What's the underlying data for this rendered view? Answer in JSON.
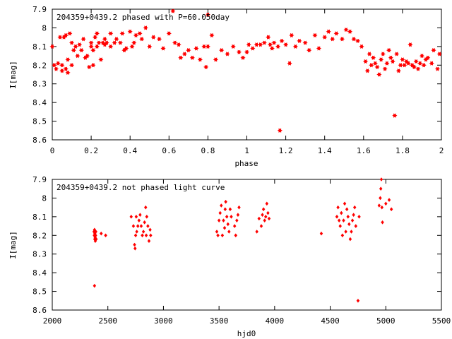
{
  "chart_data": [
    {
      "type": "scatter",
      "title": "204359+0439.2 phased with P=60.050day",
      "xlabel": "phase",
      "ylabel": "I[mag]",
      "xlim": [
        0,
        2
      ],
      "ylim": [
        7.9,
        8.6
      ],
      "y_inverted": true,
      "xticks": [
        "0",
        "0.2",
        "0.4",
        "0.6",
        "0.8",
        "1",
        "1.2",
        "1.4",
        "1.6",
        "1.8",
        "2"
      ],
      "yticks": [
        "7.9",
        "8",
        "8.1",
        "8.2",
        "8.3",
        "8.4",
        "8.5",
        "8.6"
      ],
      "marker": "star",
      "color": "#ff0000",
      "grid": false,
      "legend": "none",
      "x": [
        0.0,
        0.01,
        0.02,
        0.03,
        0.04,
        0.05,
        0.05,
        0.06,
        0.07,
        0.07,
        0.08,
        0.08,
        0.09,
        0.1,
        0.1,
        0.11,
        0.12,
        0.13,
        0.14,
        0.15,
        0.16,
        0.17,
        0.18,
        0.19,
        0.2,
        0.2,
        0.21,
        0.21,
        0.22,
        0.23,
        0.23,
        0.24,
        0.25,
        0.26,
        0.27,
        0.27,
        0.28,
        0.3,
        0.3,
        0.32,
        0.33,
        0.35,
        0.36,
        0.37,
        0.38,
        0.4,
        0.41,
        0.42,
        0.43,
        0.45,
        0.46,
        0.48,
        0.5,
        0.52,
        0.55,
        0.57,
        0.6,
        0.62,
        0.63,
        0.65,
        0.66,
        0.68,
        0.7,
        0.72,
        0.74,
        0.76,
        0.78,
        0.79,
        0.8,
        0.8,
        0.82,
        0.84,
        0.87,
        0.9,
        0.93,
        0.96,
        0.98,
        1.0,
        1.01,
        1.03,
        1.05,
        1.07,
        1.09,
        1.11,
        1.12,
        1.13,
        1.14,
        1.16,
        1.17,
        1.18,
        1.2,
        1.22,
        1.23,
        1.25,
        1.27,
        1.3,
        1.32,
        1.35,
        1.37,
        1.4,
        1.42,
        1.44,
        1.46,
        1.49,
        1.51,
        1.53,
        1.55,
        1.57,
        1.59,
        1.61,
        1.62,
        1.63,
        1.64,
        1.65,
        1.66,
        1.67,
        1.68,
        1.69,
        1.7,
        1.71,
        1.72,
        1.73,
        1.74,
        1.75,
        1.76,
        1.77,
        1.78,
        1.79,
        1.8,
        1.81,
        1.82,
        1.83,
        1.84,
        1.85,
        1.86,
        1.87,
        1.88,
        1.89,
        1.9,
        1.91,
        1.92,
        1.93,
        1.95,
        1.96,
        1.98,
        1.99
      ],
      "y": [
        8.1,
        8.2,
        8.22,
        8.19,
        8.05,
        8.2,
        8.23,
        8.05,
        8.22,
        8.04,
        8.24,
        8.17,
        8.03,
        8.2,
        8.08,
        8.12,
        8.1,
        8.15,
        8.09,
        8.12,
        8.06,
        8.16,
        8.15,
        8.21,
        8.08,
        8.1,
        8.12,
        8.2,
        8.05,
        8.1,
        8.03,
        8.08,
        8.17,
        8.08,
        8.06,
        8.09,
        8.08,
        8.03,
        8.1,
        8.08,
        8.06,
        8.08,
        8.03,
        8.12,
        8.11,
        8.02,
        8.1,
        8.08,
        8.04,
        8.03,
        8.06,
        8.0,
        8.1,
        8.05,
        8.06,
        8.11,
        8.03,
        7.91,
        8.08,
        8.09,
        8.16,
        8.14,
        8.12,
        8.16,
        8.11,
        8.17,
        8.1,
        8.21,
        8.1,
        7.93,
        8.04,
        8.17,
        8.12,
        8.14,
        8.1,
        8.13,
        8.16,
        8.13,
        8.09,
        8.11,
        8.09,
        8.09,
        8.08,
        8.05,
        8.09,
        8.11,
        8.08,
        8.1,
        8.55,
        8.07,
        8.09,
        8.19,
        8.04,
        8.1,
        8.07,
        8.08,
        8.12,
        8.04,
        8.11,
        8.05,
        8.02,
        8.06,
        8.03,
        8.06,
        8.01,
        8.02,
        8.06,
        8.07,
        8.1,
        8.18,
        8.23,
        8.14,
        8.2,
        8.16,
        8.19,
        8.21,
        8.25,
        8.17,
        8.14,
        8.22,
        8.19,
        8.12,
        8.16,
        8.18,
        8.47,
        8.14,
        8.23,
        8.2,
        8.17,
        8.2,
        8.18,
        8.19,
        8.09,
        8.2,
        8.21,
        8.18,
        8.22,
        8.19,
        8.15,
        8.2,
        8.17,
        8.16,
        8.19,
        8.12,
        8.22,
        8.14
      ]
    },
    {
      "type": "scatter",
      "title": "204359+0439.2 not phased light curve",
      "xlabel": "hjd0",
      "ylabel": "I[mag]",
      "xlim": [
        2000,
        5500
      ],
      "ylim": [
        7.9,
        8.6
      ],
      "y_inverted": true,
      "xticks": [
        "2000",
        "2500",
        "3000",
        "3500",
        "4000",
        "4500",
        "5000",
        "5500"
      ],
      "yticks": [
        "7.9",
        "8",
        "8.1",
        "8.2",
        "8.3",
        "8.4",
        "8.5",
        "8.6"
      ],
      "marker": "diamond",
      "color": "#ff0000",
      "grid": false,
      "legend": "none",
      "x": [
        2375,
        2378,
        2380,
        2382,
        2383,
        2385,
        2387,
        2390,
        2392,
        2395,
        2380,
        2440,
        2480,
        2710,
        2730,
        2740,
        2745,
        2750,
        2755,
        2760,
        2770,
        2780,
        2790,
        2800,
        2810,
        2820,
        2830,
        2840,
        2845,
        2850,
        2860,
        2870,
        2880,
        2885,
        3480,
        3490,
        3500,
        3510,
        3520,
        3530,
        3540,
        3550,
        3555,
        3560,
        3570,
        3580,
        3590,
        3600,
        3610,
        3640,
        3650,
        3660,
        3670,
        3680,
        3840,
        3860,
        3880,
        3890,
        3900,
        3910,
        3920,
        3930,
        3940,
        3950,
        4420,
        4560,
        4570,
        4580,
        4590,
        4600,
        4610,
        4620,
        4630,
        4640,
        4650,
        4660,
        4670,
        4680,
        4690,
        4700,
        4710,
        4720,
        4730,
        4750,
        4760,
        4940,
        4950,
        4955,
        4960,
        4965,
        4970,
        5000,
        5030,
        5050
      ],
      "y": [
        8.18,
        8.2,
        8.17,
        8.22,
        8.19,
        8.21,
        8.23,
        8.2,
        8.18,
        8.22,
        8.47,
        8.19,
        8.2,
        8.1,
        8.15,
        8.25,
        8.27,
        8.2,
        8.1,
        8.18,
        8.15,
        8.12,
        8.09,
        8.15,
        8.2,
        8.18,
        8.13,
        8.05,
        8.2,
        8.1,
        8.15,
        8.23,
        8.17,
        8.2,
        8.18,
        8.2,
        8.12,
        8.08,
        8.04,
        8.2,
        8.12,
        8.16,
        8.06,
        8.02,
        8.1,
        8.14,
        8.18,
        8.06,
        8.1,
        8.15,
        8.2,
        8.12,
        8.09,
        8.05,
        8.18,
        8.11,
        8.15,
        8.09,
        8.06,
        8.12,
        8.1,
        8.03,
        8.08,
        8.11,
        8.19,
        8.1,
        8.05,
        8.12,
        8.15,
        8.08,
        8.2,
        8.12,
        8.03,
        8.18,
        8.06,
        8.1,
        8.14,
        8.22,
        8.18,
        8.12,
        8.09,
        8.05,
        8.15,
        8.55,
        8.1,
        8.04,
        8.0,
        7.95,
        7.9,
        8.05,
        8.13,
        8.03,
        8.01,
        8.06
      ]
    }
  ]
}
